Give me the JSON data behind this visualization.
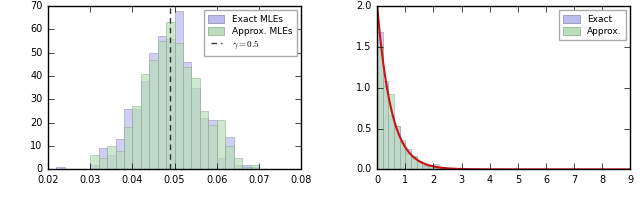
{
  "left_hist": {
    "exact_values_mean": 0.0485,
    "exact_values_std": 0.0072,
    "approx_values_mean": 0.049,
    "approx_values_std": 0.0072,
    "n_samples": 500,
    "bins": 30,
    "xlim": [
      0.02,
      0.08
    ],
    "ylim": [
      0,
      70
    ],
    "yticks": [
      0,
      10,
      20,
      30,
      40,
      50,
      60,
      70
    ],
    "xticks": [
      0.02,
      0.03,
      0.04,
      0.05,
      0.06,
      0.07,
      0.08
    ],
    "vline": 0.049,
    "exact_color": "#bbbbee",
    "approx_color": "#bbddbb",
    "exact_edge": "#8888aa",
    "approx_edge": "#88aa88",
    "exact_label": "Exact MLEs",
    "approx_label": "Approx. MLEs",
    "exact_alpha": 0.7,
    "approx_alpha": 0.7
  },
  "right_hist": {
    "exact_scale": 0.5,
    "approx_scale": 0.52,
    "n_samples": 1000,
    "bins": 45,
    "xlim": [
      0,
      9
    ],
    "ylim": [
      0.0,
      2.0
    ],
    "yticks": [
      0.0,
      0.5,
      1.0,
      1.5,
      2.0
    ],
    "xticks": [
      0,
      1,
      2,
      3,
      4,
      5,
      6,
      7,
      8,
      9
    ],
    "curve_color": "#cc1111",
    "curve_scale": 0.5,
    "exact_color": "#bbbbee",
    "approx_color": "#bbddbb",
    "exact_edge": "#8888aa",
    "approx_edge": "#88aa88",
    "exact_label": "Exact",
    "approx_label": "Approx.",
    "exact_alpha": 0.7,
    "approx_alpha": 0.7
  },
  "style": "classic",
  "figure_bg": "#f0f0f0",
  "axes_bg": "#ffffff"
}
